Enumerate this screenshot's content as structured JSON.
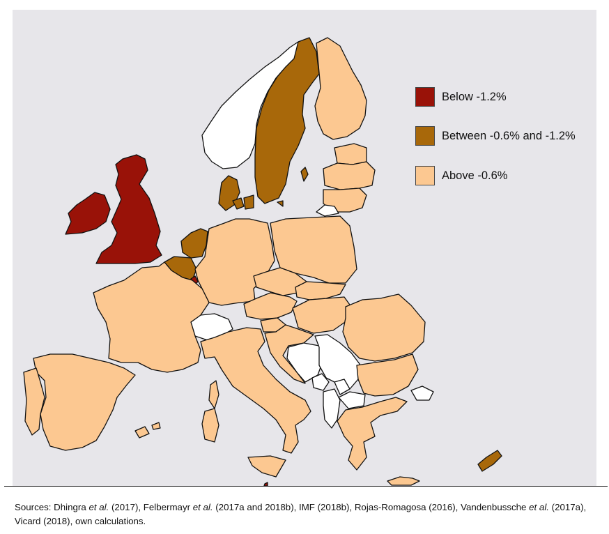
{
  "legend": [
    {
      "label": "Below -1.2%",
      "color": "#991208"
    },
    {
      "label": "Between -0.6% and -1.2%",
      "color": "#a8680a"
    },
    {
      "label": "Above -0.6%",
      "color": "#fcc891"
    }
  ],
  "colors": {
    "sea": "#e7e6ea",
    "non_eu": "#ffffff",
    "border": "#111111"
  },
  "caption": {
    "p1": "Sources: Dhingra ",
    "i1": "et al.",
    "p2": " (2017), Felbermayr ",
    "i2": "et al.",
    "p3": " (2017a and 2018b), IMF (2018b), Rojas-Romagosa (2016), Vandenbussche ",
    "i3": "et al.",
    "p4": " (2017a), Vicard (2018), own calculations."
  }
}
